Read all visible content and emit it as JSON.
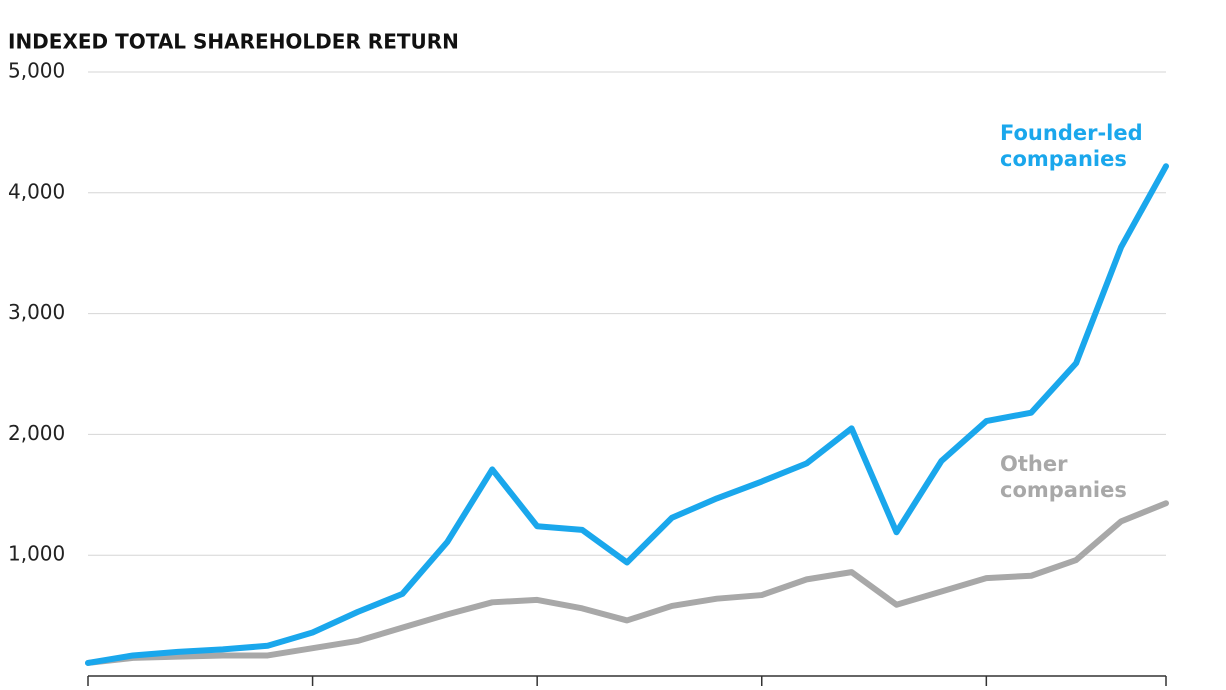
{
  "chart_data": {
    "type": "line",
    "title": "INDEXED TOTAL SHAREHOLDER RETURN",
    "categories": [
      null,
      null,
      null,
      null,
      null,
      null,
      null,
      null,
      null,
      null,
      null,
      null,
      null,
      null,
      null,
      null,
      null,
      null,
      null,
      null,
      null,
      null,
      null,
      null,
      null
    ],
    "series": [
      {
        "name": "Founder-led companies",
        "color": "#1aa7ec",
        "values": [
          108,
          170,
          200,
          220,
          250,
          360,
          530,
          680,
          1110,
          1710,
          1240,
          1210,
          940,
          1310,
          1470,
          1610,
          1760,
          2050,
          1190,
          1780,
          2110,
          2180,
          2590,
          3550,
          4220
        ]
      },
      {
        "name": "Other companies",
        "color": "#a8a8a8",
        "values": [
          108,
          150,
          160,
          170,
          170,
          230,
          290,
          400,
          510,
          610,
          630,
          560,
          460,
          580,
          640,
          670,
          800,
          860,
          590,
          700,
          810,
          830,
          960,
          1280,
          1430
        ]
      }
    ],
    "ylim": [
      0,
      5000
    ],
    "yticks": [
      {
        "value": 1000,
        "label": "1,000"
      },
      {
        "value": 2000,
        "label": "2,000"
      },
      {
        "value": 3000,
        "label": "3,000"
      },
      {
        "value": 4000,
        "label": "4,000"
      },
      {
        "value": 5000,
        "label": "5,000"
      }
    ],
    "grid": true
  }
}
